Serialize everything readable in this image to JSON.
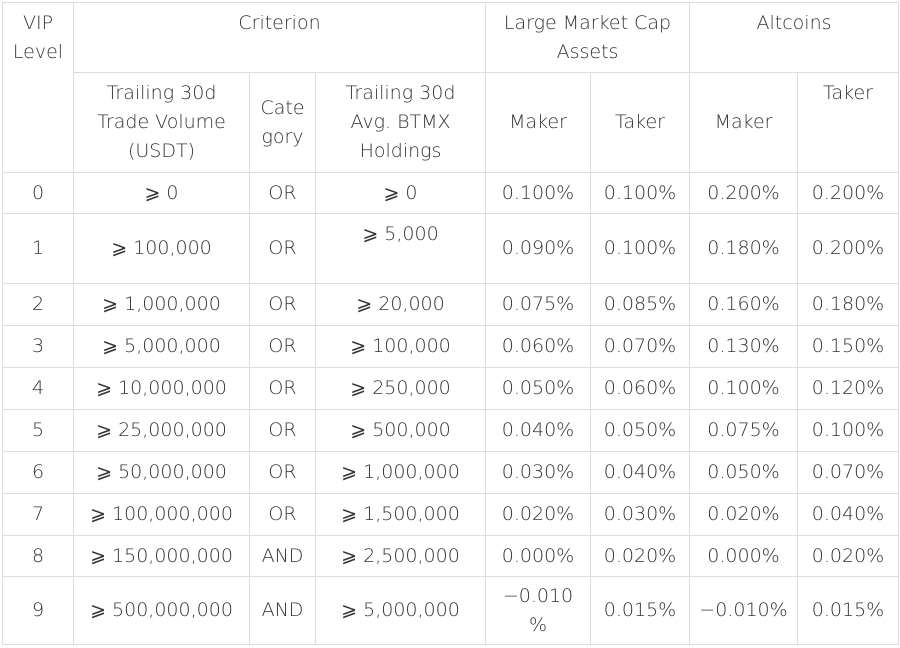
{
  "header": {
    "vip_level": "VIP\nLevel",
    "criterion": "Criterion",
    "large_cap": "Large Market Cap\nAssets",
    "altcoins": "Altcoins",
    "volume": "Trailing 30d\nTrade Volume\n(USDT)",
    "category": "Cate\ngory",
    "holdings": "Trailing 30d\nAvg. BTMX\nHoldings",
    "large_maker": "Maker",
    "large_taker": "Taker",
    "alt_maker": "Maker",
    "alt_taker": "Taker"
  },
  "rows": [
    {
      "level": "0",
      "volume": "⩾ 0",
      "category": "OR",
      "holdings": "⩾ 0",
      "large_maker": "0.100%",
      "large_taker": "0.100%",
      "alt_maker": "0.200%",
      "alt_taker": "0.200%"
    },
    {
      "level": "1",
      "volume": "⩾ 100,000",
      "category": "OR",
      "holdings": "⩾ 5,000",
      "large_maker": "0.090%",
      "large_taker": "0.100%",
      "alt_maker": "0.180%",
      "alt_taker": "0.200%"
    },
    {
      "level": "2",
      "volume": "⩾ 1,000,000",
      "category": "OR",
      "holdings": "⩾ 20,000",
      "large_maker": "0.075%",
      "large_taker": "0.085%",
      "alt_maker": "0.160%",
      "alt_taker": "0.180%"
    },
    {
      "level": "3",
      "volume": "⩾ 5,000,000",
      "category": "OR",
      "holdings": "⩾ 100,000",
      "large_maker": "0.060%",
      "large_taker": "0.070%",
      "alt_maker": "0.130%",
      "alt_taker": "0.150%"
    },
    {
      "level": "4",
      "volume": "⩾ 10,000,000",
      "category": "OR",
      "holdings": "⩾ 250,000",
      "large_maker": "0.050%",
      "large_taker": "0.060%",
      "alt_maker": "0.100%",
      "alt_taker": "0.120%"
    },
    {
      "level": "5",
      "volume": "⩾ 25,000,000",
      "category": "OR",
      "holdings": "⩾ 500,000",
      "large_maker": "0.040%",
      "large_taker": "0.050%",
      "alt_maker": "0.075%",
      "alt_taker": "0.100%"
    },
    {
      "level": "6",
      "volume": "⩾ 50,000,000",
      "category": "OR",
      "holdings": "⩾ 1,000,000",
      "large_maker": "0.030%",
      "large_taker": "0.040%",
      "alt_maker": "0.050%",
      "alt_taker": "0.070%"
    },
    {
      "level": "7",
      "volume": "⩾ 100,000,000",
      "category": "OR",
      "holdings": "⩾ 1,500,000",
      "large_maker": "0.020%",
      "large_taker": "0.030%",
      "alt_maker": "0.020%",
      "alt_taker": "0.040%"
    },
    {
      "level": "8",
      "volume": "⩾ 150,000,000",
      "category": "AND",
      "holdings": "⩾ 2,500,000",
      "large_maker": "0.000%",
      "large_taker": "0.020%",
      "alt_maker": "0.000%",
      "alt_taker": "0.020%"
    },
    {
      "level": "9",
      "volume": "⩾ 500,000,000",
      "category": "AND",
      "holdings": "⩾ 5,000,000",
      "large_maker": "−0.010\n%",
      "large_taker": "0.015%",
      "alt_maker": "−0.010%",
      "alt_taker": "0.015%"
    }
  ]
}
